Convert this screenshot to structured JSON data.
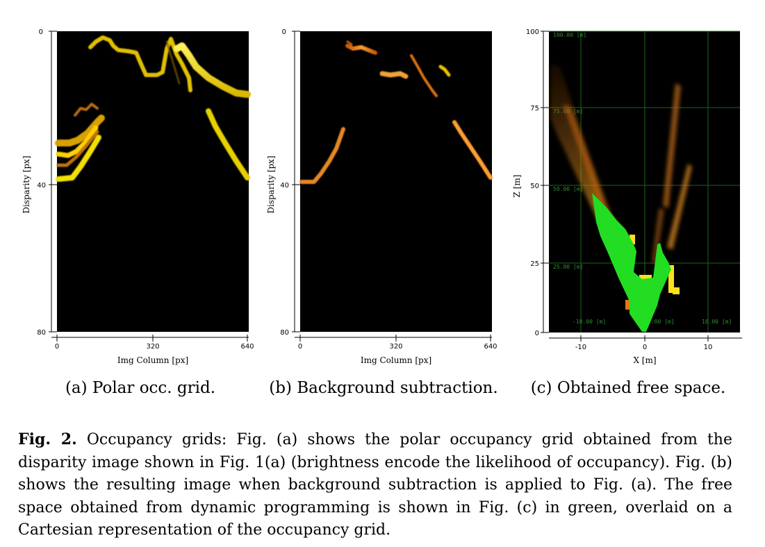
{
  "panels": [
    {
      "id": "a",
      "ylabel": "Disparity [px]",
      "xlabel": "Img Column [px]",
      "yticks": [
        "0",
        "40",
        "80"
      ],
      "xticks": [
        "0",
        "320",
        "640"
      ],
      "subcaption": "(a) Polar occ. grid."
    },
    {
      "id": "b",
      "ylabel": "Disparity [px]",
      "xlabel": "Img Column [px]",
      "yticks": [
        "0",
        "40",
        "80"
      ],
      "xticks": [
        "0",
        "320",
        "640"
      ],
      "subcaption": "(b) Background subtraction."
    },
    {
      "id": "c",
      "ylabel": "Z [m]",
      "xlabel": "X [m]",
      "yticks": [
        "0",
        "25",
        "50",
        "75",
        "100"
      ],
      "xticks": [
        "-10",
        "0",
        "10"
      ],
      "grid_labels": [
        "100.00 [m]",
        "75.00 [m]",
        "50.00 [m]",
        "25.00 [m]",
        "-10.00 [m]",
        "0.00 [m]",
        "10.00 [m]"
      ],
      "subcaption": "(c) Obtained free space."
    }
  ],
  "caption": {
    "label": "Fig. 2.",
    "text": "Occupancy grids: Fig. (a) shows the polar occupancy grid obtained from the disparity image shown in Fig. 1(a) (brightness encode the likelihood of occupancy). Fig. (b) shows the resulting image when background subtraction is applied to Fig. (a). The free space obtained from dynamic programming is shown in Fig. (c) in green, overlaid on a Cartesian representation of the occupancy grid."
  },
  "colors": {
    "plot_bg": "#000000",
    "occupancy_yellow": "#e8d800",
    "occupancy_orange": "#e07a10",
    "free_space_green": "#22dd22",
    "grid_green": "#1f6f1f"
  }
}
